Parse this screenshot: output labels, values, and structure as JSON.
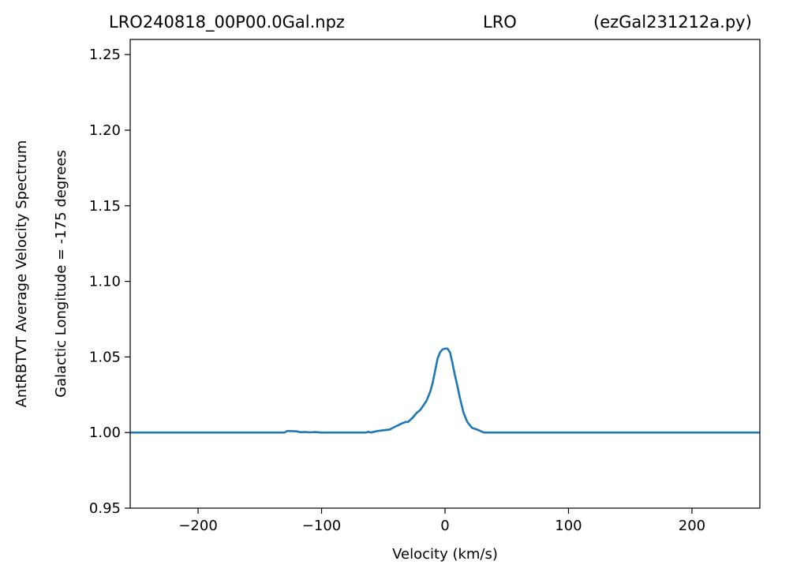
{
  "chart_data": {
    "type": "line",
    "title_left": "LRO240818_00P00.0Gal.npz",
    "title_center": "LRO",
    "title_right": "(ezGal231212a.py)",
    "xlabel": "Velocity (km/s)",
    "ylabel_outer": "AntRBTVT Average Velocity Spectrum",
    "ylabel_inner": "Galactic Longitude = -175 degrees",
    "xlim": [
      -255,
      255
    ],
    "ylim": [
      0.95,
      1.26
    ],
    "x_ticks": [
      -200,
      -100,
      0,
      100,
      200
    ],
    "x_tick_labels": [
      "−200",
      "−100",
      "0",
      "100",
      "200"
    ],
    "y_ticks": [
      0.95,
      1.0,
      1.05,
      1.1,
      1.15,
      1.2,
      1.25
    ],
    "y_tick_labels": [
      "0.95",
      "1.00",
      "1.05",
      "1.10",
      "1.15",
      "1.20",
      "1.25"
    ],
    "grid": false,
    "line_color": "#1f77b4",
    "series": [
      {
        "x": [
          -255,
          -130,
          -128,
          -125,
          -120,
          -117,
          -113,
          -110,
          -105,
          -100,
          -95,
          -80,
          -64,
          -62,
          -60,
          -55,
          -50,
          -45,
          -40,
          -35,
          -32,
          -30,
          -26,
          -23,
          -20,
          -15,
          -12,
          -10,
          -8,
          -6,
          -4,
          -2,
          0,
          2,
          4,
          6,
          8,
          10,
          12,
          15,
          18,
          22,
          26,
          30,
          32,
          34,
          40,
          100,
          255
        ],
        "y": [
          1.0,
          1.0,
          1.001,
          1.001,
          1.0008,
          1.0002,
          1.0004,
          1.0001,
          1.0003,
          1.0,
          1.0,
          1.0,
          1.0,
          1.0005,
          1.0,
          1.001,
          1.0015,
          1.002,
          1.004,
          1.006,
          1.007,
          1.007,
          1.01,
          1.013,
          1.015,
          1.021,
          1.027,
          1.033,
          1.041,
          1.049,
          1.053,
          1.055,
          1.0555,
          1.0555,
          1.053,
          1.046,
          1.038,
          1.031,
          1.023,
          1.013,
          1.007,
          1.003,
          1.002,
          1.0005,
          1.0,
          1.0,
          1.0,
          1.0,
          1.0
        ]
      }
    ]
  }
}
